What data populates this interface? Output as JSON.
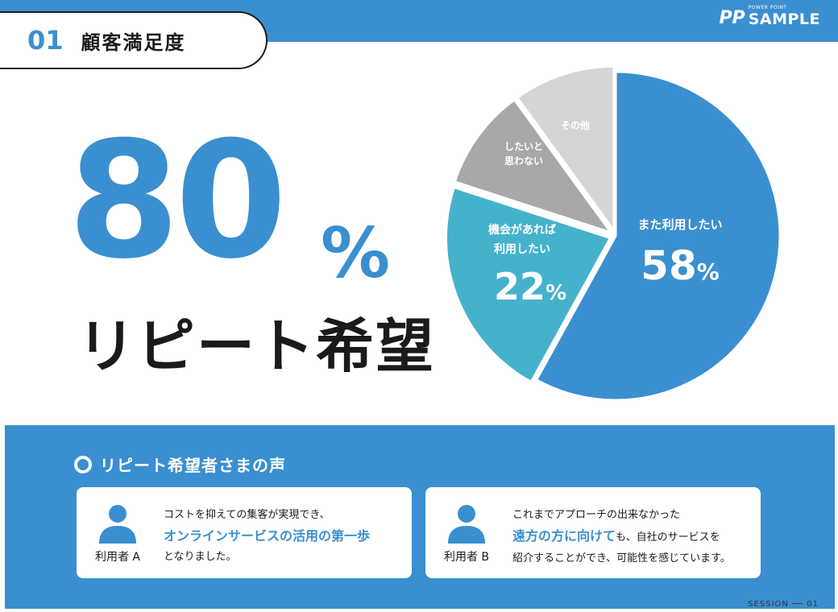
{
  "header": {
    "number": "01",
    "title": "顧客満足度"
  },
  "logo": {
    "small": "POWER POINT",
    "big": "SAMPLE",
    "mark": "PP"
  },
  "hero": {
    "number": "80",
    "unit": "%",
    "subtitle": "リピート希望"
  },
  "chart_data": {
    "type": "pie",
    "slices": [
      {
        "label": "また利用したい",
        "value": 58,
        "display": "58%",
        "color": "#3a8fd0"
      },
      {
        "label": "機会があれば利用したい",
        "value": 22,
        "display": "22%",
        "color": "#45b2cc"
      },
      {
        "label": "したいと思わない",
        "value": 10,
        "display": "",
        "color": "#a8a8a8"
      },
      {
        "label": "その他",
        "value": 10,
        "display": "",
        "color": "#d5d5d5"
      }
    ]
  },
  "chart_labels": {
    "s1_label": "また利用したい",
    "s1_num": "58",
    "s1_unit": "%",
    "s2_line1": "機会があれば",
    "s2_line2": "利用したい",
    "s2_num": "22",
    "s2_unit": "%",
    "s3_line1": "したいと",
    "s3_line2": "思わない",
    "s4_label": "その他"
  },
  "voices": {
    "title": "リピート希望者さまの声",
    "card_a": {
      "user": "利用者 A",
      "line1": "コストを抑えての集客が実現でき、",
      "highlight": "オンラインサービスの活用の第一歩",
      "line3": "となりました。"
    },
    "card_b": {
      "user": "利用者 B",
      "line1": "これまでアプローチの出来なかった",
      "highlight": "遠方の方に向けて",
      "line2_rest": "も、自社のサービスを",
      "line3": "紹介することができ、可能性を感じています。"
    }
  },
  "footer": {
    "session": "SESSION ── 01"
  },
  "colors": {
    "brand_blue": "#3a8fd0",
    "teal": "#45b2cc",
    "gray_dark": "#a8a8a8",
    "gray_light": "#d5d5d5"
  }
}
